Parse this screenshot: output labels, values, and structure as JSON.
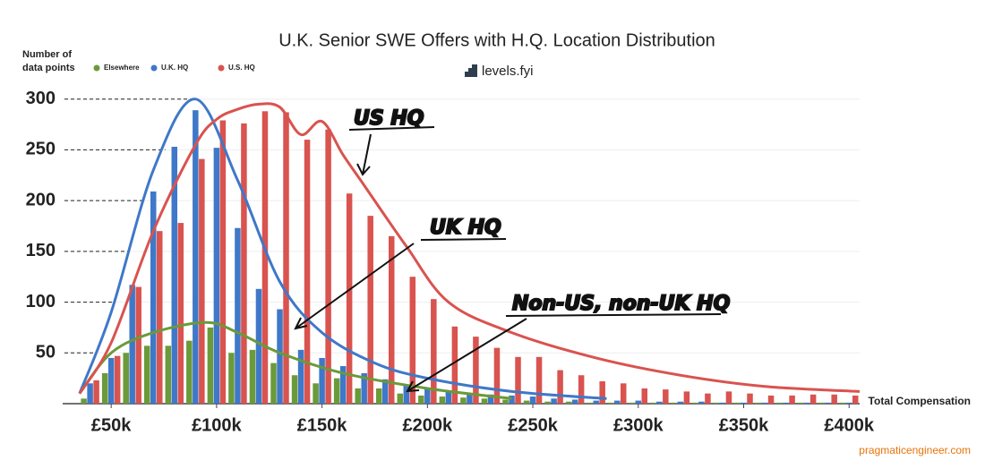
{
  "chart_data": {
    "type": "bar",
    "title": "U.K. Senior SWE Offers with H.Q. Location Distribution",
    "y_label": [
      "Number of",
      "data points"
    ],
    "x_label": "Total Compensation",
    "brand": "levels.fyi",
    "credit": "pragmaticengineer.com",
    "annotations": [
      "US HQ",
      "UK HQ",
      "Non-US, non-UK HQ"
    ],
    "legend": "top-left",
    "x": [
      40,
      50,
      60,
      70,
      80,
      90,
      100,
      110,
      120,
      130,
      140,
      150,
      160,
      170,
      180,
      190,
      200,
      210,
      220,
      230,
      240,
      250,
      260,
      270,
      280,
      290,
      300,
      310,
      320,
      330,
      340,
      350,
      360,
      370,
      380,
      390,
      400
    ],
    "series": [
      {
        "name": "Elsewhere",
        "color": "#6a9a3a",
        "values": [
          5,
          30,
          50,
          57,
          57,
          62,
          75,
          50,
          53,
          40,
          28,
          20,
          25,
          15,
          15,
          10,
          8,
          7,
          6,
          5,
          4,
          3,
          2,
          2,
          1,
          1,
          1,
          1,
          1,
          1,
          1,
          1,
          1,
          1,
          1,
          1,
          1
        ],
        "curve_x": [
          35,
          50,
          70,
          95,
          110,
          130,
          160,
          200,
          240
        ],
        "curve": [
          10,
          50,
          70,
          80,
          70,
          50,
          30,
          15,
          5
        ]
      },
      {
        "name": "U.K. HQ",
        "color": "#3f78c8",
        "values": [
          20,
          45,
          117,
          209,
          253,
          289,
          252,
          173,
          113,
          93,
          53,
          45,
          37,
          30,
          24,
          18,
          15,
          13,
          10,
          9,
          8,
          7,
          5,
          4,
          3,
          3,
          3,
          2,
          2,
          2,
          1,
          1,
          1,
          1,
          1,
          1,
          1
        ],
        "curve_x": [
          35,
          50,
          70,
          90,
          110,
          130,
          150,
          175,
          200,
          240,
          285
        ],
        "curve": [
          10,
          90,
          230,
          300,
          220,
          120,
          70,
          40,
          25,
          12,
          5
        ]
      },
      {
        "name": "U.S. HQ",
        "color": "#d9534f",
        "values": [
          23,
          47,
          115,
          170,
          178,
          241,
          279,
          276,
          288,
          287,
          260,
          270,
          207,
          185,
          165,
          125,
          103,
          76,
          66,
          55,
          46,
          46,
          33,
          28,
          22,
          20,
          15,
          14,
          12,
          10,
          12,
          10,
          8,
          8,
          9,
          9,
          8
        ],
        "curve_x": [
          35,
          50,
          70,
          90,
          100,
          110,
          120,
          130,
          140,
          150,
          160,
          170,
          190,
          210,
          240,
          280,
          320,
          360,
          405
        ],
        "curve": [
          10,
          60,
          170,
          255,
          280,
          290,
          295,
          292,
          265,
          278,
          245,
          215,
          155,
          100,
          70,
          45,
          28,
          17,
          12
        ]
      }
    ],
    "xlim": [
      27,
      405
    ],
    "xticks": [
      {
        "value": 50,
        "label": "£50k"
      },
      {
        "value": 100,
        "label": "£100k"
      },
      {
        "value": 150,
        "label": "£150k"
      },
      {
        "value": 200,
        "label": "£200k"
      },
      {
        "value": 250,
        "label": "£250k"
      },
      {
        "value": 300,
        "label": "£300k"
      },
      {
        "value": 350,
        "label": "£350k"
      },
      {
        "value": 400,
        "label": "£400k"
      }
    ],
    "ylim": [
      0,
      320
    ],
    "yticks": [
      50,
      100,
      150,
      200,
      250,
      300
    ],
    "grid": true
  }
}
